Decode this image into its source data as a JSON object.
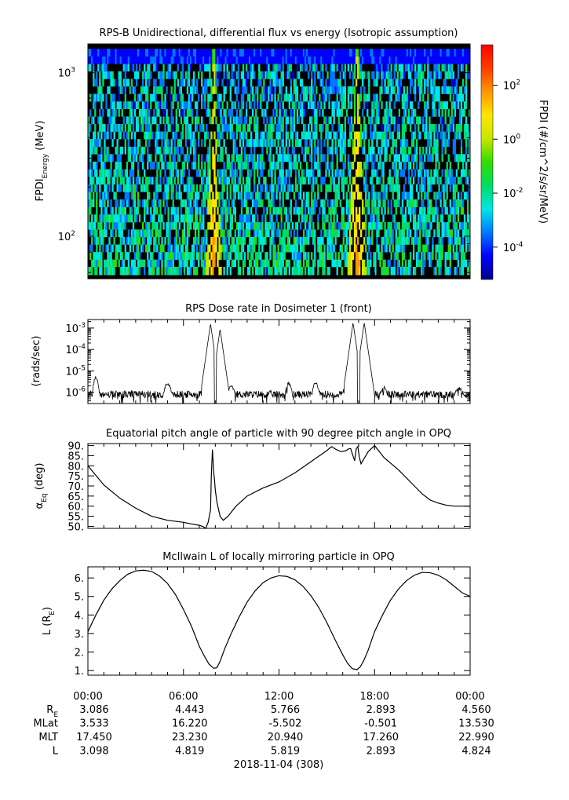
{
  "chart_data": [
    {
      "type": "heatmap",
      "title": "RPS-B  Unidirectional, differential flux vs energy (Isotropic assumption)",
      "ylabel": "FPDI",
      "ylabel_sub": "Energy",
      "ylabel_unit": " (MeV)",
      "y_scale": "log",
      "ylim": [
        55,
        1500
      ],
      "y_major_ticks": [
        {
          "value": 100,
          "base": "10",
          "exp": "2"
        },
        {
          "value": 1000,
          "base": "10",
          "exp": "3"
        }
      ],
      "energy_channels_mev": [
        58,
        65,
        72,
        80,
        89,
        99,
        110,
        122,
        136,
        151,
        168,
        187,
        208,
        231,
        257,
        286,
        318,
        353,
        393,
        437,
        486,
        540,
        601,
        668,
        743,
        826,
        918,
        1021,
        1135,
        1262,
        1400
      ],
      "bright_bands_hours": [
        {
          "center": 7.9,
          "half_width_low_energy": 0.5,
          "half_width_high_energy": 0.08
        },
        {
          "center": 16.9,
          "half_width_low_energy": 0.6,
          "half_width_high_energy": 0.12
        }
      ],
      "colorbar": {
        "label": "FPDI (#/cm^2/s/sr/MeV)",
        "scale": "log",
        "range_log10": [
          -5.2,
          3.5
        ],
        "ticks": [
          {
            "value": 0.0001,
            "base": "10",
            "exp": "-4"
          },
          {
            "value": 0.01,
            "base": "10",
            "exp": "-2"
          },
          {
            "value": 1,
            "base": "10",
            "exp": "0"
          },
          {
            "value": 100,
            "base": "10",
            "exp": "2"
          }
        ],
        "colors": [
          "#00008c",
          "#0000ff",
          "#0078ff",
          "#00e6e6",
          "#00dc64",
          "#32dc00",
          "#c8e600",
          "#ffe600",
          "#ff9600",
          "#ff3c00",
          "#ff0000"
        ]
      }
    },
    {
      "type": "line",
      "title": "RPS  Dose rate in Dosimeter 1 (front)",
      "ylabel": "(rads/sec)",
      "y_scale": "log",
      "ylim": [
        3e-07,
        0.0025
      ],
      "y_major_ticks": [
        {
          "value": 1e-06,
          "base": "10",
          "exp": "-6"
        },
        {
          "value": 1e-05,
          "base": "10",
          "exp": "-5"
        },
        {
          "value": 0.0001,
          "base": "10",
          "exp": "-4"
        },
        {
          "value": 0.001,
          "base": "10",
          "exp": "-3"
        }
      ],
      "baseline": 8e-07,
      "bumps": [
        {
          "hour": 0.5,
          "value": 5e-06,
          "width": 0.25
        },
        {
          "hour": 5.0,
          "value": 2.5e-06,
          "width": 0.4
        },
        {
          "hour": 9.0,
          "value": 1.8e-06,
          "width": 0.4
        },
        {
          "hour": 12.6,
          "value": 2.5e-06,
          "width": 0.35
        },
        {
          "hour": 14.3,
          "value": 3e-06,
          "width": 0.3
        },
        {
          "hour": 18.6,
          "value": 1.7e-06,
          "width": 0.35
        },
        {
          "hour": 23.3,
          "value": 1.5e-06,
          "width": 0.5
        }
      ],
      "peaks": [
        {
          "hour": 7.7,
          "value": 0.0016
        },
        {
          "hour": 8.3,
          "value": 0.0009
        },
        {
          "hour": 16.65,
          "value": 0.0018
        },
        {
          "hour": 17.35,
          "value": 0.0018
        }
      ],
      "gaps": [
        {
          "hour": 8.0,
          "value": 3e-07
        },
        {
          "hour": 17.0,
          "value": 3e-07
        }
      ]
    },
    {
      "type": "line",
      "title": "Equatorial pitch angle of particle with 90 degree pitch angle in OPQ",
      "ylabel": "α",
      "ylabel_sub": "Eq",
      "ylabel_unit": " (deg)",
      "ylim": [
        49,
        91
      ],
      "yticks": [
        50,
        55,
        60,
        65,
        70,
        75,
        80,
        85,
        90
      ],
      "ytick_labels": [
        "50.",
        "55.",
        "60.",
        "65.",
        "70.",
        "75.",
        "80.",
        "85.",
        "90."
      ],
      "x": [
        0,
        1,
        2,
        3,
        4,
        5,
        6,
        6.5,
        7,
        7.2,
        7.4,
        7.55,
        7.7,
        7.75,
        7.82,
        7.9,
        7.95,
        8.0,
        8.1,
        8.3,
        8.5,
        8.8,
        9.3,
        10,
        11,
        12,
        13,
        14,
        15,
        15.3,
        15.6,
        15.9,
        16.2,
        16.4,
        16.5,
        16.6,
        16.75,
        16.85,
        16.95,
        17.05,
        17.15,
        17.3,
        17.45,
        17.6,
        18.0,
        18.6,
        19.5,
        20,
        20.5,
        21,
        21.5,
        22,
        22.5,
        23,
        23.5,
        24
      ],
      "y": [
        80,
        70.5,
        64,
        59,
        55,
        53,
        52,
        51.2,
        50.5,
        50,
        49,
        52,
        58,
        75,
        88,
        77,
        73,
        68,
        62,
        55,
        53,
        55,
        60,
        65,
        69,
        72,
        76.5,
        82,
        87.5,
        89.5,
        88,
        87,
        87.5,
        88.5,
        88.5,
        86,
        82.5,
        88.5,
        89.5,
        84,
        81,
        83,
        85,
        87,
        90,
        84,
        78,
        74,
        70,
        66,
        63,
        61.5,
        60.5,
        60,
        60,
        60
      ],
      "xlim": [
        0,
        24
      ]
    },
    {
      "type": "line",
      "title": "McIlwain L of locally mirroring particle in OPQ",
      "ylabel": "L (R",
      "ylabel_sub": "E",
      "ylabel_unit": ")",
      "ylim": [
        0.75,
        6.6
      ],
      "yticks": [
        1,
        2,
        3,
        4,
        5,
        6
      ],
      "ytick_labels": [
        "1.",
        "2.",
        "3.",
        "4.",
        "5.",
        "6."
      ],
      "x": [
        0,
        0.5,
        1,
        1.5,
        2,
        2.5,
        3,
        3.5,
        4,
        4.5,
        5,
        5.5,
        6,
        6.5,
        7,
        7.3,
        7.6,
        7.9,
        8.1,
        8.3,
        8.6,
        9,
        9.5,
        10,
        10.5,
        11,
        11.5,
        12,
        12.5,
        13,
        13.5,
        14,
        14.5,
        15,
        15.5,
        16,
        16.3,
        16.6,
        16.9,
        17.1,
        17.3,
        17.6,
        18,
        18.5,
        19,
        19.5,
        20,
        20.5,
        21,
        21.5,
        22,
        22.5,
        23,
        23.5,
        24
      ],
      "y": [
        3.1,
        4.0,
        4.8,
        5.4,
        5.85,
        6.2,
        6.38,
        6.42,
        6.35,
        6.1,
        5.7,
        5.1,
        4.3,
        3.4,
        2.3,
        1.8,
        1.35,
        1.12,
        1.15,
        1.5,
        2.2,
        3.0,
        3.9,
        4.7,
        5.3,
        5.75,
        6.0,
        6.12,
        6.08,
        5.9,
        5.55,
        5.05,
        4.4,
        3.6,
        2.7,
        1.85,
        1.4,
        1.1,
        1.05,
        1.2,
        1.5,
        2.1,
        3.1,
        4.0,
        4.8,
        5.4,
        5.85,
        6.15,
        6.3,
        6.28,
        6.15,
        5.9,
        5.55,
        5.2,
        5.0
      ],
      "xlim": [
        0,
        24
      ]
    }
  ],
  "time_axis": {
    "tick_labels": [
      "00:00",
      "06:00",
      "12:00",
      "18:00",
      "00:00"
    ],
    "rows": [
      {
        "label": "R",
        "label_sub": "E",
        "values": [
          "3.086",
          "4.443",
          "5.766",
          "2.893",
          "4.560"
        ]
      },
      {
        "label": "MLat",
        "label_sub": "",
        "values": [
          "3.533",
          "16.220",
          "-5.502",
          "-0.501",
          "13.530"
        ]
      },
      {
        "label": "MLT",
        "label_sub": "",
        "values": [
          "17.450",
          "23.230",
          "20.940",
          "17.260",
          "22.990"
        ]
      },
      {
        "label": "L",
        "label_sub": "",
        "values": [
          "3.098",
          "4.819",
          "5.819",
          "2.893",
          "4.824"
        ]
      }
    ],
    "date_label": "2018-11-04 (308)"
  }
}
